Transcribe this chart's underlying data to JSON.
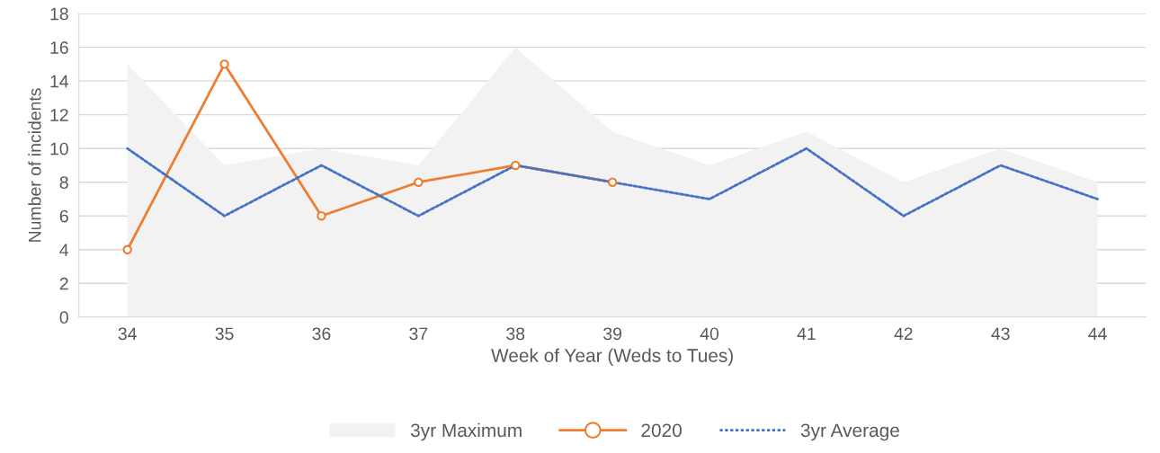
{
  "chart_data": {
    "type": "line",
    "xlabel": "Week of Year (Weds to Tues)",
    "ylabel": "Number of incidents",
    "categories": [
      "34",
      "35",
      "36",
      "37",
      "38",
      "39",
      "40",
      "41",
      "42",
      "43",
      "44"
    ],
    "series": [
      {
        "name": "3yr Maximum",
        "type": "area",
        "color": "#f2f2f2",
        "values": [
          15,
          9,
          10,
          9,
          16,
          11,
          9,
          11,
          8,
          10,
          8
        ]
      },
      {
        "name": "2020",
        "color": "#ed7d31",
        "marker": "circle",
        "line_style": "solid",
        "values": [
          4,
          15,
          6,
          8,
          9,
          8,
          null,
          null,
          null,
          null,
          null
        ]
      },
      {
        "name": "3yr Average",
        "color": "#4472c4",
        "marker": "none",
        "line_style": "dotted",
        "values": [
          10,
          6,
          9,
          6,
          9,
          8,
          7,
          10,
          6,
          9,
          7
        ]
      }
    ],
    "ylim": [
      0,
      18
    ],
    "yticks": [
      0,
      2,
      4,
      6,
      8,
      10,
      12,
      14,
      16,
      18
    ],
    "grid": "y",
    "legend": "bottom"
  }
}
